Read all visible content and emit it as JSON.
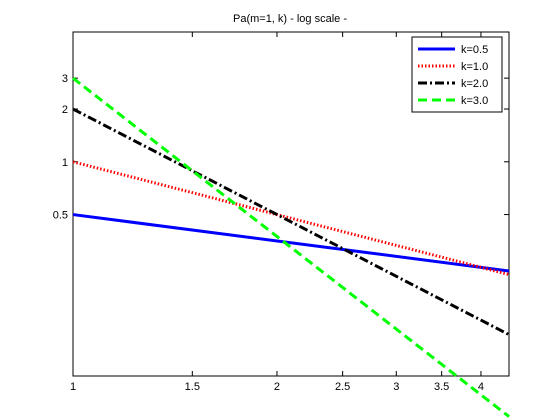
{
  "chart_data": {
    "type": "line",
    "title": "Pa(m=1, k) - log scale -",
    "xlabel": "",
    "ylabel": "",
    "x_scale": "log",
    "y_scale": "log",
    "xlim": [
      1,
      4.4
    ],
    "ylim": [
      0.06,
      5.5
    ],
    "x_ticks": [
      1,
      1.5,
      2,
      2.5,
      3,
      3.5,
      4
    ],
    "x_tick_labels": [
      "1",
      "1.5",
      "2",
      "2.5",
      "3",
      "3.5",
      "4"
    ],
    "y_ticks": [
      0.5,
      1,
      2,
      3
    ],
    "y_tick_labels": [
      "0.5",
      "1",
      "2",
      "3"
    ],
    "grid": false,
    "legend_position": "top-right",
    "series": [
      {
        "name": "k=0.5",
        "color": "#0000ff",
        "style": "solid",
        "x": [
          1,
          4.4
        ],
        "y": [
          0.5,
          0.2384
        ]
      },
      {
        "name": "k=1.0",
        "color": "#ff0000",
        "style": "dotted",
        "x": [
          1,
          4.4
        ],
        "y": [
          1.0,
          0.2273
        ]
      },
      {
        "name": "k=2.0",
        "color": "#000000",
        "style": "dashdot",
        "x": [
          1,
          4.4
        ],
        "y": [
          2.0,
          0.1033
        ]
      },
      {
        "name": "k=3.0",
        "color": "#00ff00",
        "style": "dashed",
        "x": [
          1,
          4.4
        ],
        "y": [
          3.0,
          0.0352
        ]
      }
    ]
  }
}
